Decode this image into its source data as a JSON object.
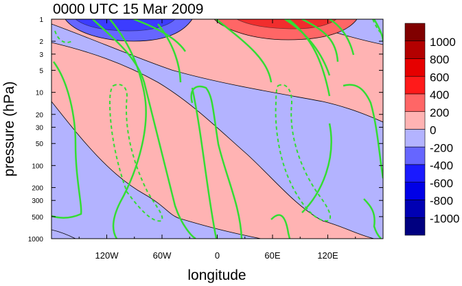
{
  "chart_data": {
    "type": "heatmap",
    "title": "0000 UTC 15 Mar 2009",
    "xlabel": "longitude",
    "ylabel": "pressure (hPa)",
    "x_range": [
      -180,
      180
    ],
    "y_range": [
      1000,
      1
    ],
    "y_scale": "log",
    "x_ticks": [
      {
        "value": -120,
        "label": "120W"
      },
      {
        "value": -60,
        "label": "60W"
      },
      {
        "value": 0,
        "label": "0"
      },
      {
        "value": 60,
        "label": "60E"
      },
      {
        "value": 120,
        "label": "120E"
      }
    ],
    "y_ticks": [
      {
        "value": 1,
        "label": "1"
      },
      {
        "value": 2,
        "label": "2"
      },
      {
        "value": 3,
        "label": "3"
      },
      {
        "value": 5,
        "label": "5"
      },
      {
        "value": 10,
        "label": "10"
      },
      {
        "value": 20,
        "label": "20"
      },
      {
        "value": 30,
        "label": "30"
      },
      {
        "value": 50,
        "label": "50"
      },
      {
        "value": 100,
        "label": "100"
      },
      {
        "value": 200,
        "label": "200"
      },
      {
        "value": 300,
        "label": "300"
      },
      {
        "value": 500,
        "label": "500"
      },
      {
        "value": 1000,
        "label": "1000"
      }
    ],
    "colorbar": {
      "labels": [
        "1000",
        "800",
        "600",
        "400",
        "200",
        "0",
        "-200",
        "-400",
        "-600",
        "-800",
        "-1000"
      ],
      "colors": [
        "#800000",
        "#b30000",
        "#e60000",
        "#ff1a1a",
        "#ff6666",
        "#ffb3b3",
        "#b3b3ff",
        "#6666ff",
        "#1a1aff",
        "#0000e6",
        "#0000b3",
        "#000080"
      ]
    },
    "field_colors": {
      "positive": "#ffb3b3",
      "negative": "#b3b3ff",
      "strong_positive_1": "#ff6666",
      "strong_positive_2": "#e60000",
      "strong_negative_1": "#6666ff",
      "strong_negative_2": "#1a1aff",
      "overlay_contour": "#33dd33"
    },
    "grid": false
  }
}
